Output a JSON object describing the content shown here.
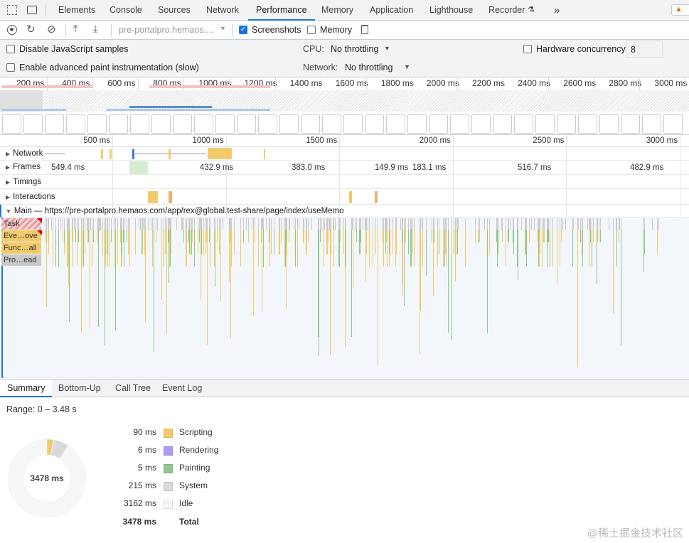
{
  "tabs": [
    {
      "label": "Elements"
    },
    {
      "label": "Console"
    },
    {
      "label": "Sources"
    },
    {
      "label": "Network"
    },
    {
      "label": "Performance",
      "active": true
    },
    {
      "label": "Memory"
    },
    {
      "label": "Application"
    },
    {
      "label": "Lighthouse"
    },
    {
      "label": "Recorder"
    }
  ],
  "more_tabs": "»",
  "warning_icon": "warning-icon",
  "toolbar": {
    "target": "pre-portalpro.hemaos....",
    "screenshots_label": "Screenshots",
    "screenshots_checked": true,
    "memory_label": "Memory",
    "memory_checked": false
  },
  "settings": {
    "disable_js": "Disable JavaScript samples",
    "advanced_paint": "Enable advanced paint instrumentation (slow)",
    "cpu_label": "CPU:",
    "cpu_value": "No throttling",
    "network_label": "Network:",
    "network_value": "No throttling",
    "hw_label": "Hardware concurrency",
    "hw_value": "8"
  },
  "overview_ticks": [
    "200 ms",
    "400 ms",
    "600 ms",
    "800 ms",
    "1000 ms",
    "1200 ms",
    "1400 ms",
    "1600 ms",
    "1800 ms",
    "2000 ms",
    "2200 ms",
    "2400 ms",
    "2600 ms",
    "2800 ms",
    "3000 ms"
  ],
  "ruler_ticks": [
    "500 ms",
    "1000 ms",
    "1500 ms",
    "2000 ms",
    "2500 ms",
    "3000 ms"
  ],
  "tracks": {
    "network": "Network",
    "frames": "Frames",
    "timings": "Timings",
    "interactions": "Interactions",
    "main": "Main — https://pre-portalpro.hemaos.com/app/rex@global.test-share/page/index/useMemo"
  },
  "frame_times": [
    "549.4 ms",
    "432.9 ms",
    "383.0 ms",
    "149.9 ms",
    "183.1 ms",
    "516.7 ms",
    "482.9 ms"
  ],
  "flame_stack": [
    "Task",
    "Eve…ove",
    "Func…all",
    "Pro…ead"
  ],
  "bottom_tabs": [
    {
      "label": "Summary",
      "active": true
    },
    {
      "label": "Bottom-Up"
    },
    {
      "label": "Call Tree"
    },
    {
      "label": "Event Log"
    }
  ],
  "summary": {
    "range": "Range: 0 – 3.48 s",
    "total_center": "3478 ms",
    "items": [
      {
        "value": "90 ms",
        "name": "Scripting",
        "ms": 90,
        "color": "#f2ca6b"
      },
      {
        "value": "6 ms",
        "name": "Rendering",
        "ms": 6,
        "color": "#af9bef"
      },
      {
        "value": "5 ms",
        "name": "Painting",
        "ms": 5,
        "color": "#8fc78c"
      },
      {
        "value": "215 ms",
        "name": "System",
        "ms": 215,
        "color": "#dadada"
      },
      {
        "value": "3162 ms",
        "name": "Idle",
        "ms": 3162,
        "color": "#f6f6f6"
      }
    ],
    "total_value": "3478 ms",
    "total_label": "Total"
  },
  "watermark": "@稀土掘金技术社区"
}
